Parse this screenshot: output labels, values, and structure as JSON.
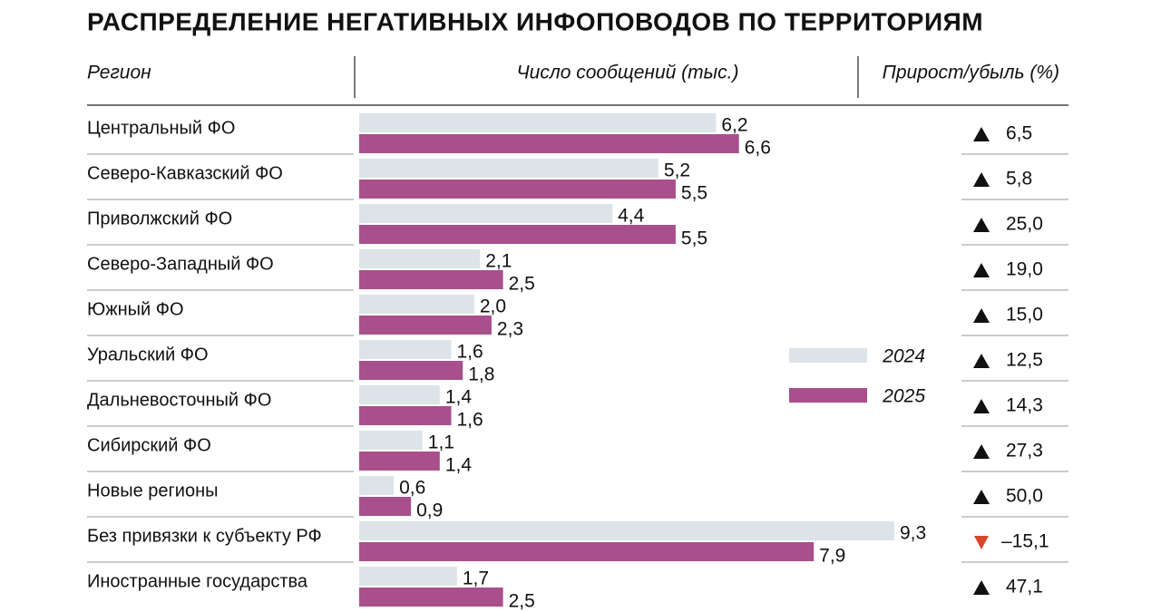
{
  "chart_data": {
    "type": "bar",
    "orientation": "horizontal",
    "title": "РАСПРЕДЕЛЕНИЕ НЕГАТИВНЫХ ИНФОПОВОДОВ ПО ТЕРРИТОРИЯМ",
    "category_header": "Регион",
    "value_header": "Число сообщений (тыс.)",
    "change_header": "Прирост/убыль (%)",
    "categories": [
      "Центральный ФО",
      "Северо-Кавказский ФО",
      "Приволжский ФО",
      "Северо-Западный ФО",
      "Южный ФО",
      "Уральский ФО",
      "Дальневосточный ФО",
      "Сибирский ФО",
      "Новые регионы",
      "Без привязки к субъекту РФ",
      "Иностранные государства"
    ],
    "series": [
      {
        "name": "2024",
        "color": "#dce3e9",
        "values": [
          6.2,
          5.2,
          4.4,
          2.1,
          2.0,
          1.6,
          1.4,
          1.1,
          0.6,
          9.3,
          1.7
        ],
        "value_labels": [
          "6,2",
          "5,2",
          "4,4",
          "2,1",
          "2,0",
          "1,6",
          "1,4",
          "1,1",
          "0,6",
          "9,3",
          "1,7"
        ]
      },
      {
        "name": "2025",
        "color": "#a84f8c",
        "values": [
          6.6,
          5.5,
          5.5,
          2.5,
          2.3,
          1.8,
          1.6,
          1.4,
          0.9,
          7.9,
          2.5
        ],
        "value_labels": [
          "6,6",
          "5,5",
          "5,5",
          "2,5",
          "2,3",
          "1,8",
          "1,6",
          "1,4",
          "0,9",
          "7,9",
          "2,5"
        ]
      }
    ],
    "change": {
      "values": [
        6.5,
        5.8,
        25.0,
        19.0,
        15.0,
        12.5,
        14.3,
        27.3,
        50.0,
        -15.1,
        47.1
      ],
      "value_labels": [
        "6,5",
        "5,8",
        "25,0",
        "19,0",
        "15,0",
        "12,5",
        "14,3",
        "27,3",
        "50,0",
        "–15,1",
        "47,1"
      ],
      "up_color": "#111111",
      "down_color": "#d9452b"
    }
  }
}
